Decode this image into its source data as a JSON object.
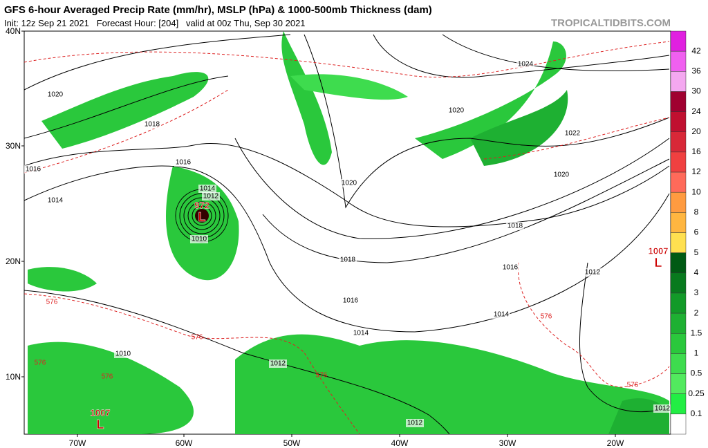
{
  "header": {
    "title": "GFS 6-hour Averaged Precip Rate (mm/hr), MSLP (hPa) & 1000-500mb Thickness (dam)",
    "subtitle": "Init: 12z Sep 21 2021   Forecast Hour: [204]   valid at 00z Thu, Sep 30 2021",
    "site": "TROPICALTIDBITS.COM"
  },
  "axes": {
    "lat": [
      "40N",
      "30N",
      "20N",
      "10N"
    ],
    "lon": [
      "70W",
      "60W",
      "50W",
      "40W",
      "30W",
      "20W"
    ]
  },
  "colorbar": {
    "labels": [
      "42",
      "36",
      "30",
      "24",
      "20",
      "16",
      "12",
      "10",
      "8",
      "6",
      "5",
      "4",
      "3",
      "2",
      "1.5",
      "1",
      "0.5",
      "0.25",
      "0.1"
    ],
    "colors": [
      "#e020e0",
      "#f060f0",
      "#f4a8f0",
      "#a00030",
      "#c01030",
      "#d82838",
      "#f04040",
      "#ff6a5a",
      "#ff9b40",
      "#ffb640",
      "#ffe050",
      "#005a14",
      "#087a1e",
      "#129a28",
      "#1eb032",
      "#2ac83c",
      "#3edc4e",
      "#52ea5e",
      "#22ee44",
      "#ffffff"
    ]
  },
  "isobar_labels": [
    "1020",
    "1018",
    "1016",
    "1016",
    "1014",
    "1014",
    "1012",
    "1010",
    "1024",
    "1020",
    "1022",
    "1020",
    "1020",
    "1018",
    "1018",
    "1016",
    "1016",
    "1014",
    "1014",
    "1012",
    "1012",
    "1012",
    "1012",
    "1010"
  ],
  "thickness_labels": [
    "576",
    "576",
    "576",
    "576",
    "576",
    "576",
    "576"
  ],
  "lows": [
    {
      "symbol": "L",
      "pressure": "972"
    },
    {
      "symbol": "L",
      "pressure": "1007"
    },
    {
      "symbol": "L",
      "pressure": "1007"
    }
  ]
}
